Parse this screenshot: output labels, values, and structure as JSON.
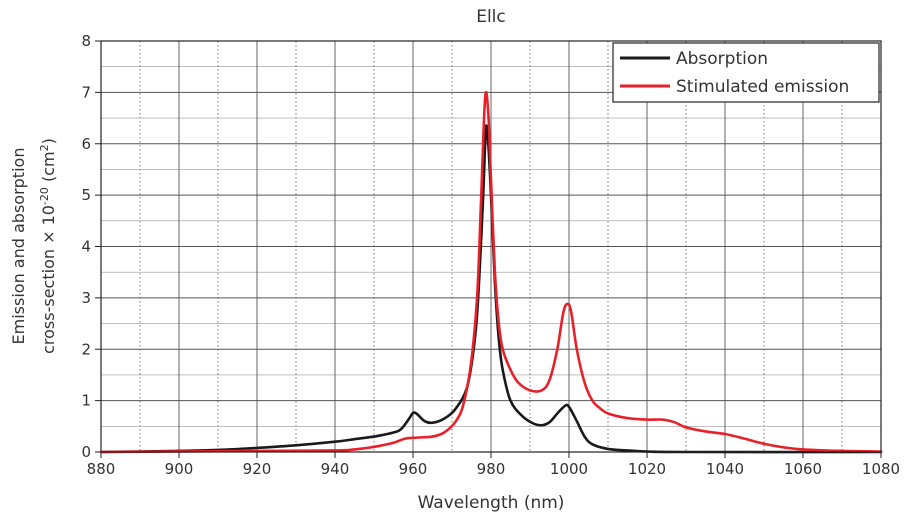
{
  "chart_data": {
    "type": "line",
    "title": "Ellc",
    "xlabel": "Wavelength (nm)",
    "ylabel_line1": "Emission and absorption",
    "ylabel_line2_prefix": "cross-section × 10",
    "ylabel_line2_exp": "-20",
    "ylabel_line2_suffix": " (cm",
    "ylabel_line2_unit_exp": "2",
    "ylabel_line2_close": ")",
    "xlim": [
      880,
      1080
    ],
    "ylim": [
      0,
      8
    ],
    "xticks": [
      880,
      900,
      920,
      940,
      960,
      980,
      1000,
      1020,
      1040,
      1060,
      1080
    ],
    "yticks": [
      0,
      1,
      2,
      3,
      4,
      5,
      6,
      7,
      8
    ],
    "grid": {
      "major": true,
      "minor": true,
      "minor_x_step": 10,
      "minor_y_step": 0.5
    },
    "legend_position": "top-right",
    "series": [
      {
        "name": "Absorption",
        "color": "#1a1a1a",
        "points": [
          [
            880,
            0.0
          ],
          [
            890,
            0.01
          ],
          [
            900,
            0.02
          ],
          [
            910,
            0.04
          ],
          [
            920,
            0.08
          ],
          [
            930,
            0.13
          ],
          [
            940,
            0.2
          ],
          [
            945,
            0.25
          ],
          [
            950,
            0.3
          ],
          [
            955,
            0.38
          ],
          [
            957,
            0.45
          ],
          [
            959,
            0.65
          ],
          [
            960,
            0.76
          ],
          [
            961,
            0.74
          ],
          [
            963,
            0.6
          ],
          [
            965,
            0.57
          ],
          [
            968,
            0.65
          ],
          [
            971,
            0.85
          ],
          [
            974,
            1.3
          ],
          [
            976,
            2.3
          ],
          [
            977,
            3.4
          ],
          [
            978,
            5.0
          ],
          [
            978.7,
            6.3
          ],
          [
            979.3,
            6.0
          ],
          [
            980,
            5.0
          ],
          [
            981,
            3.3
          ],
          [
            982,
            2.2
          ],
          [
            983,
            1.6
          ],
          [
            985,
            1.0
          ],
          [
            988,
            0.7
          ],
          [
            991,
            0.55
          ],
          [
            993,
            0.52
          ],
          [
            995,
            0.58
          ],
          [
            997,
            0.75
          ],
          [
            999,
            0.9
          ],
          [
            1000,
            0.88
          ],
          [
            1002,
            0.6
          ],
          [
            1004,
            0.3
          ],
          [
            1006,
            0.15
          ],
          [
            1010,
            0.06
          ],
          [
            1015,
            0.03
          ],
          [
            1020,
            0.01
          ],
          [
            1030,
            0.0
          ],
          [
            1080,
            0.0
          ]
        ]
      },
      {
        "name": "Stimulated emission",
        "color": "#e8202a",
        "points": [
          [
            880,
            0.0
          ],
          [
            900,
            0.01
          ],
          [
            920,
            0.02
          ],
          [
            940,
            0.03
          ],
          [
            945,
            0.05
          ],
          [
            950,
            0.1
          ],
          [
            955,
            0.18
          ],
          [
            958,
            0.26
          ],
          [
            961,
            0.28
          ],
          [
            965,
            0.3
          ],
          [
            968,
            0.38
          ],
          [
            971,
            0.6
          ],
          [
            973,
            0.95
          ],
          [
            975,
            1.8
          ],
          [
            976.5,
            3.1
          ],
          [
            977.5,
            5.0
          ],
          [
            978.5,
            6.9
          ],
          [
            979.3,
            6.6
          ],
          [
            980,
            5.3
          ],
          [
            981,
            3.5
          ],
          [
            982,
            2.5
          ],
          [
            983,
            2.0
          ],
          [
            985,
            1.6
          ],
          [
            987,
            1.35
          ],
          [
            990,
            1.2
          ],
          [
            993,
            1.2
          ],
          [
            995,
            1.4
          ],
          [
            997,
            2.0
          ],
          [
            998.5,
            2.7
          ],
          [
            999.5,
            2.88
          ],
          [
            1000.5,
            2.75
          ],
          [
            1002,
            2.0
          ],
          [
            1004,
            1.35
          ],
          [
            1006,
            1.0
          ],
          [
            1008,
            0.85
          ],
          [
            1010,
            0.75
          ],
          [
            1015,
            0.66
          ],
          [
            1020,
            0.63
          ],
          [
            1024,
            0.63
          ],
          [
            1027,
            0.58
          ],
          [
            1030,
            0.48
          ],
          [
            1035,
            0.4
          ],
          [
            1040,
            0.35
          ],
          [
            1045,
            0.26
          ],
          [
            1050,
            0.16
          ],
          [
            1055,
            0.09
          ],
          [
            1060,
            0.05
          ],
          [
            1070,
            0.02
          ],
          [
            1080,
            0.01
          ]
        ]
      }
    ]
  }
}
